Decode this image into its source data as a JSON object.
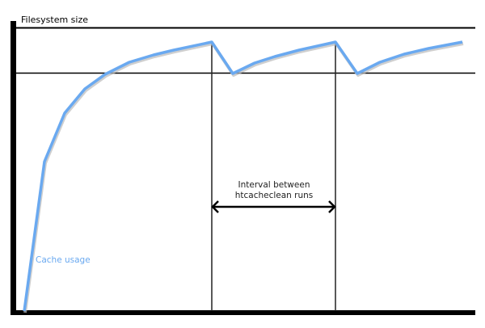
{
  "diagram": {
    "y_axis_label": "Filesystem size",
    "series_label": "Cache usage",
    "interval_label_line1": "Interval between",
    "interval_label_line2": "htcacheclean runs",
    "colors": {
      "axis": "#000000",
      "cache_line": "#6aa9f0",
      "cache_shadow": "#bbbbbb",
      "series_label": "#6aa9f0"
    }
  }
}
